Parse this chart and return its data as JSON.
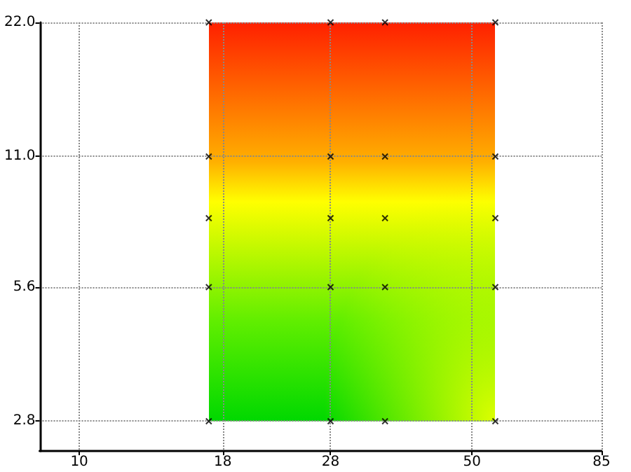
{
  "chart_data": {
    "type": "scatter",
    "log": "xy",
    "grid": true,
    "marker": "cross",
    "xlim": [
      8.5,
      85
    ],
    "xticks": [
      10,
      18,
      28,
      50,
      85
    ],
    "ylim": [
      2.4,
      22
    ],
    "yticks": [
      {
        "value": 2.8,
        "label": "2.8"
      },
      {
        "value": 5.6,
        "label": "5.6"
      },
      {
        "value": 11,
        "label": "11.0"
      },
      {
        "value": 22,
        "label": "22.0"
      }
    ],
    "series": [
      {
        "color": "#000000",
        "x": [
          17,
          17,
          17,
          17,
          17,
          28,
          28,
          28,
          28,
          28,
          35,
          35,
          35,
          35,
          35,
          55,
          55,
          55,
          55,
          55
        ],
        "values": [
          2.8,
          5.6,
          8,
          11,
          22,
          2.8,
          5.6,
          8,
          11,
          22,
          2.8,
          5.6,
          8,
          11,
          22,
          2.8,
          5.6,
          8,
          11,
          22
        ]
      }
    ]
  }
}
